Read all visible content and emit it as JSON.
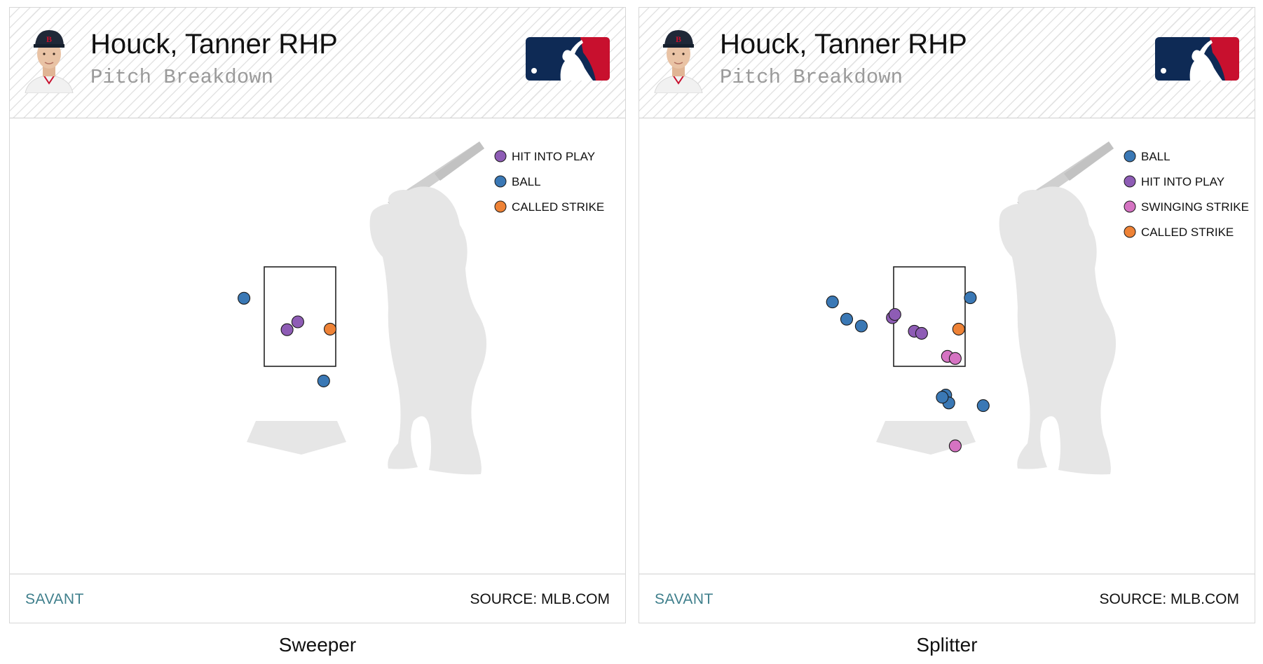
{
  "header": {
    "pitcher_name": "Houck, Tanner RHP",
    "subtitle": "Pitch Breakdown"
  },
  "footer": {
    "brand": "SAVANT",
    "source": "SOURCE: MLB.COM"
  },
  "colors": {
    "ball": "#3a78b5",
    "hit_into_play": "#8e5cb5",
    "called_strike": "#ee8236",
    "swinging_strike": "#d573c2",
    "silhouette": "#e6e6e6",
    "savant": "#3f7f8c"
  },
  "icons": {
    "avatar": "player-headshot-icon",
    "logo": "mlb-logo-icon",
    "silhouette": "batter-silhouette-icon"
  },
  "chart_data": [
    {
      "type": "scatter",
      "title": "Sweeper",
      "legend": [
        "HIT INTO PLAY",
        "BALL",
        "CALLED STRIKE"
      ],
      "legend_position": "top-right",
      "grid": false,
      "xlim": [
        -2.8,
        3.2
      ],
      "ylim": [
        0.0,
        4.8
      ],
      "strike_zone": {
        "x": [
          -0.83,
          0.83
        ],
        "y": [
          1.55,
          3.45
        ]
      },
      "points": [
        {
          "x": -1.3,
          "y": 2.85,
          "result": "BALL"
        },
        {
          "x": -0.3,
          "y": 2.25,
          "result": "HIT INTO PLAY"
        },
        {
          "x": -0.05,
          "y": 2.4,
          "result": "HIT INTO PLAY"
        },
        {
          "x": 0.7,
          "y": 2.26,
          "result": "CALLED STRIKE"
        },
        {
          "x": 0.55,
          "y": 1.27,
          "result": "BALL"
        }
      ]
    },
    {
      "type": "scatter",
      "title": "Splitter",
      "legend": [
        "BALL",
        "HIT INTO PLAY",
        "SWINGING STRIKE",
        "CALLED STRIKE"
      ],
      "legend_position": "top-right",
      "grid": false,
      "xlim": [
        -2.8,
        3.2
      ],
      "ylim": [
        0.0,
        4.8
      ],
      "strike_zone": {
        "x": [
          -0.83,
          0.83
        ],
        "y": [
          1.55,
          3.45
        ]
      },
      "points": [
        {
          "x": -2.25,
          "y": 2.78,
          "result": "BALL"
        },
        {
          "x": -1.92,
          "y": 2.45,
          "result": "BALL"
        },
        {
          "x": -1.58,
          "y": 2.32,
          "result": "BALL"
        },
        {
          "x": -0.86,
          "y": 2.48,
          "result": "HIT INTO PLAY"
        },
        {
          "x": -0.8,
          "y": 2.54,
          "result": "HIT INTO PLAY"
        },
        {
          "x": -0.35,
          "y": 2.22,
          "result": "HIT INTO PLAY"
        },
        {
          "x": -0.18,
          "y": 2.18,
          "result": "HIT INTO PLAY"
        },
        {
          "x": 0.95,
          "y": 2.86,
          "result": "BALL"
        },
        {
          "x": 0.68,
          "y": 2.26,
          "result": "CALLED STRIKE"
        },
        {
          "x": 0.42,
          "y": 1.74,
          "result": "SWINGING STRIKE"
        },
        {
          "x": 0.6,
          "y": 1.7,
          "result": "SWINGING STRIKE"
        },
        {
          "x": 0.38,
          "y": 1.0,
          "result": "BALL"
        },
        {
          "x": 0.45,
          "y": 0.85,
          "result": "BALL"
        },
        {
          "x": 0.3,
          "y": 0.96,
          "result": "BALL"
        },
        {
          "x": 1.25,
          "y": 0.8,
          "result": "BALL"
        },
        {
          "x": 0.6,
          "y": 0.03,
          "result": "SWINGING STRIKE"
        }
      ]
    }
  ]
}
